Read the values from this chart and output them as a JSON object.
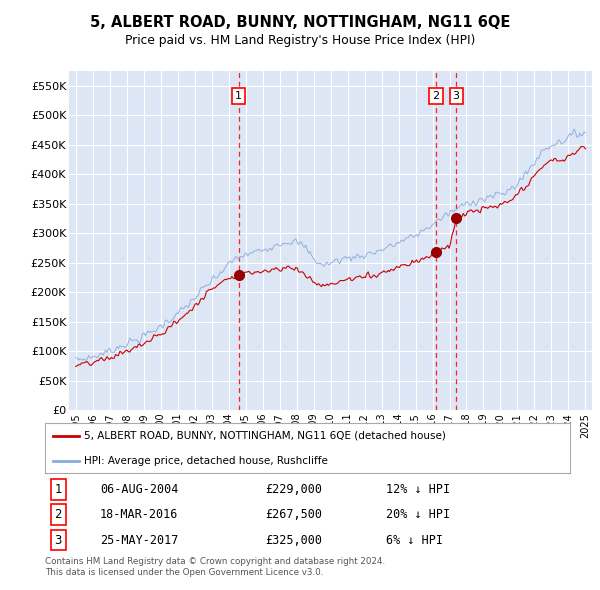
{
  "title": "5, ALBERT ROAD, BUNNY, NOTTINGHAM, NG11 6QE",
  "subtitle": "Price paid vs. HM Land Registry's House Price Index (HPI)",
  "ylim": [
    0,
    575000
  ],
  "yticks": [
    0,
    50000,
    100000,
    150000,
    200000,
    250000,
    300000,
    350000,
    400000,
    450000,
    500000,
    550000
  ],
  "ytick_labels": [
    "£0",
    "£50K",
    "£100K",
    "£150K",
    "£200K",
    "£250K",
    "£300K",
    "£350K",
    "£400K",
    "£450K",
    "£500K",
    "£550K"
  ],
  "plot_bg_color": "#dce6f5",
  "grid_color": "#ffffff",
  "red_line_color": "#cc0000",
  "blue_line_color": "#88aadd",
  "transactions": [
    {
      "id": 1,
      "date": "06-AUG-2004",
      "date_val": 2004.585,
      "price": 229000,
      "pct": "12%",
      "dir": "↓"
    },
    {
      "id": 2,
      "date": "18-MAR-2016",
      "date_val": 2016.205,
      "price": 267500,
      "pct": "20%",
      "dir": "↓"
    },
    {
      "id": 3,
      "date": "25-MAY-2017",
      "date_val": 2017.393,
      "price": 325000,
      "pct": "6%",
      "dir": "↓"
    }
  ],
  "legend_line1": "5, ALBERT ROAD, BUNNY, NOTTINGHAM, NG11 6QE (detached house)",
  "legend_line2": "HPI: Average price, detached house, Rushcliffe",
  "footer_line1": "Contains HM Land Registry data © Crown copyright and database right 2024.",
  "footer_line2": "This data is licensed under the Open Government Licence v3.0."
}
